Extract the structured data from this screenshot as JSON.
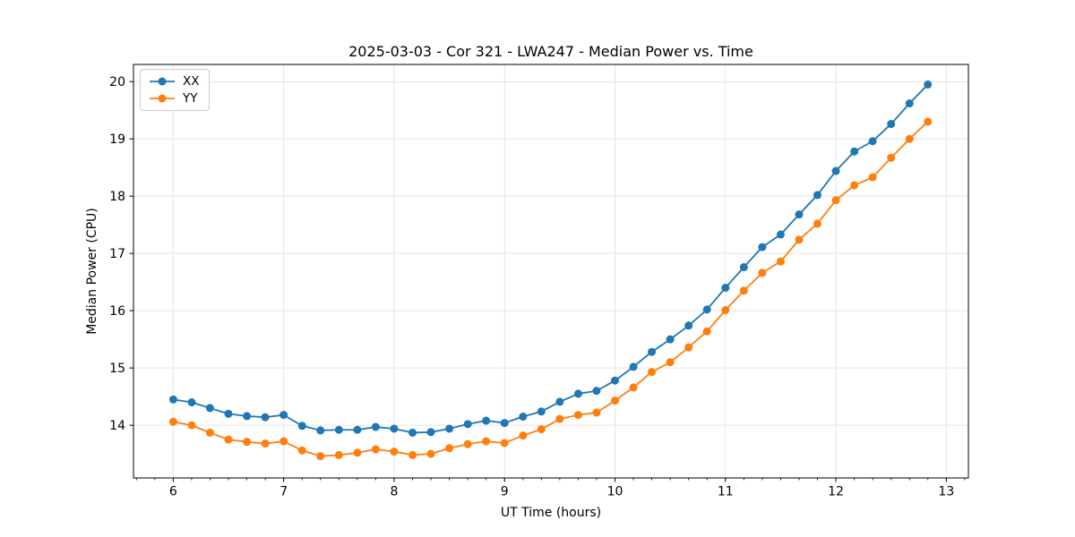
{
  "chart_data": {
    "type": "line",
    "title": "2025-03-03 - Cor 321 - LWA247 - Median Power vs. Time",
    "xlabel": "UT Time (hours)",
    "ylabel": "Median Power (CPU)",
    "xlim": [
      5.64,
      13.2
    ],
    "ylim": [
      13.08,
      20.3
    ],
    "xticks": [
      6,
      7,
      8,
      9,
      10,
      11,
      12,
      13
    ],
    "yticks": [
      14,
      15,
      16,
      17,
      18,
      19,
      20
    ],
    "x_minor_step": 0.16667,
    "grid": true,
    "grid_color": "#e5e5e5",
    "spine_color": "#000000",
    "background": "#ffffff",
    "legend_position": "upper left",
    "x": [
      6.0,
      6.167,
      6.333,
      6.5,
      6.667,
      6.833,
      7.0,
      7.167,
      7.333,
      7.5,
      7.667,
      7.833,
      8.0,
      8.167,
      8.333,
      8.5,
      8.667,
      8.833,
      9.0,
      9.167,
      9.333,
      9.5,
      9.667,
      9.833,
      10.0,
      10.167,
      10.333,
      10.5,
      10.667,
      10.833,
      11.0,
      11.167,
      11.333,
      11.5,
      11.667,
      11.833,
      12.0,
      12.167,
      12.333,
      12.5,
      12.667,
      12.833
    ],
    "series": [
      {
        "name": "XX",
        "color": "#1f77b4",
        "values": [
          14.45,
          14.4,
          14.3,
          14.2,
          14.16,
          14.14,
          14.18,
          13.99,
          13.91,
          13.92,
          13.92,
          13.97,
          13.94,
          13.87,
          13.88,
          13.94,
          14.02,
          14.08,
          14.04,
          14.15,
          14.24,
          14.41,
          14.55,
          14.6,
          14.78,
          15.02,
          15.28,
          15.5,
          15.74,
          16.02,
          16.4,
          16.76,
          17.11,
          17.33,
          17.68,
          18.02,
          18.44,
          18.78,
          18.96,
          19.26,
          19.62,
          19.95
        ]
      },
      {
        "name": "YY",
        "color": "#ff7f0e",
        "values": [
          14.06,
          14.0,
          13.87,
          13.75,
          13.71,
          13.68,
          13.72,
          13.56,
          13.46,
          13.48,
          13.52,
          13.58,
          13.54,
          13.48,
          13.5,
          13.6,
          13.67,
          13.72,
          13.69,
          13.82,
          13.93,
          14.11,
          14.18,
          14.22,
          14.43,
          14.66,
          14.93,
          15.1,
          15.36,
          15.64,
          16.01,
          16.35,
          16.66,
          16.86,
          17.24,
          17.52,
          17.93,
          18.19,
          18.33,
          18.67,
          19.0,
          19.3
        ]
      }
    ]
  }
}
